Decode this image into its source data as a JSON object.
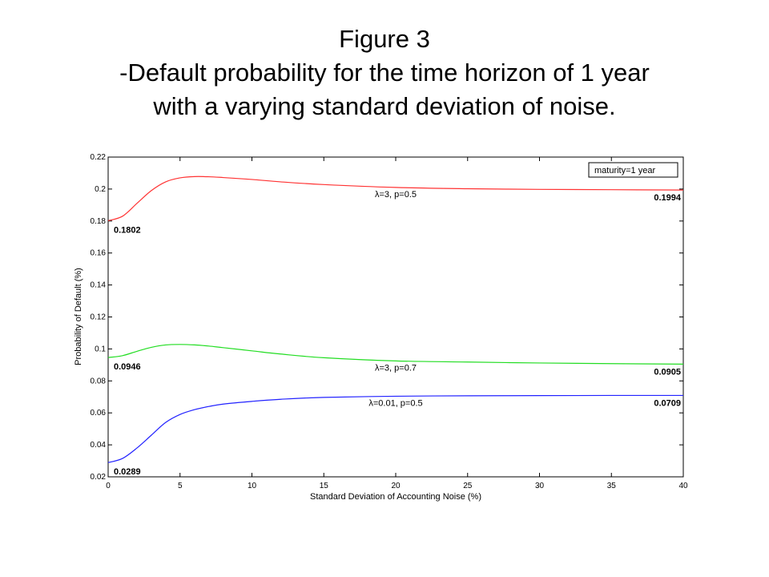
{
  "title": {
    "line1": "Figure 3",
    "line2": "-Default probability for the time horizon of 1 year",
    "line3": "with a varying standard deviation of noise."
  },
  "chart_data": {
    "type": "line",
    "xlabel": "Standard Deviation of Accounting Noise (%)",
    "ylabel": "Probability of Default (%)",
    "xlim": [
      0,
      40
    ],
    "ylim": [
      0.02,
      0.22
    ],
    "xticks": [
      0,
      5,
      10,
      15,
      20,
      25,
      30,
      35,
      40
    ],
    "yticks": [
      0.02,
      0.04,
      0.06,
      0.08,
      0.1,
      0.12,
      0.14,
      0.16,
      0.18,
      0.2,
      0.22
    ],
    "xtick_labels": [
      "0",
      "5",
      "10",
      "15",
      "20",
      "25",
      "30",
      "35",
      "40"
    ],
    "ytick_labels": [
      "0.02",
      "0.04",
      "0.06",
      "0.08",
      "0.1",
      "0.12",
      "0.14",
      "0.16",
      "0.18",
      "0.2",
      "0.22"
    ],
    "grid": false,
    "legend": {
      "text": "maturity=1 year",
      "position": "top-right"
    },
    "x": [
      0,
      1,
      2,
      3,
      4,
      5,
      6,
      7,
      8,
      10,
      12,
      15,
      20,
      25,
      30,
      35,
      40
    ],
    "series": [
      {
        "name": "λ=3, p=0.5",
        "color": "#ff3333",
        "values": [
          0.1802,
          0.183,
          0.191,
          0.199,
          0.2045,
          0.207,
          0.2078,
          0.2077,
          0.2072,
          0.206,
          0.2045,
          0.2028,
          0.201,
          0.2002,
          0.1998,
          0.1996,
          0.1994
        ],
        "start_label": "0.1802",
        "end_label": "0.1994"
      },
      {
        "name": "λ=3, p=0.7",
        "color": "#22dd22",
        "values": [
          0.0946,
          0.0958,
          0.0985,
          0.101,
          0.1025,
          0.1028,
          0.1025,
          0.1018,
          0.1008,
          0.0988,
          0.0968,
          0.0945,
          0.0925,
          0.0918,
          0.0912,
          0.0908,
          0.0905
        ],
        "start_label": "0.0946",
        "end_label": "0.0905"
      },
      {
        "name": "λ=0.01, p=0.5",
        "color": "#2222ff",
        "values": [
          0.0289,
          0.0315,
          0.038,
          0.046,
          0.054,
          0.059,
          0.062,
          0.064,
          0.0655,
          0.0672,
          0.0685,
          0.0697,
          0.0704,
          0.0707,
          0.0708,
          0.0709,
          0.0709
        ],
        "start_label": "0.0289",
        "end_label": "0.0709"
      }
    ]
  }
}
